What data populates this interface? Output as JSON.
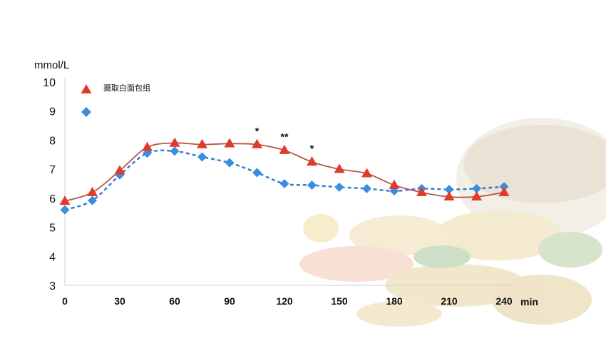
{
  "chart_data": {
    "type": "line",
    "ylabel": "mmol/L",
    "xlabel": "min",
    "xlim": [
      0,
      240
    ],
    "ylim": [
      3,
      10
    ],
    "x_ticks": [
      0,
      30,
      60,
      90,
      120,
      150,
      180,
      210,
      240
    ],
    "y_ticks": [
      3,
      4,
      5,
      6,
      7,
      8,
      9,
      10
    ],
    "legend_placement": "top-left",
    "series": [
      {
        "name": "摄取白面包组",
        "marker": "triangle",
        "line_style": "solid",
        "color": "#e03a2a",
        "line_color": "#b5574d",
        "x": [
          0,
          15,
          30,
          45,
          60,
          75,
          90,
          105,
          120,
          135,
          150,
          165,
          180,
          195,
          210,
          225,
          240
        ],
        "values": [
          5.9,
          6.2,
          6.95,
          7.75,
          7.9,
          7.85,
          7.88,
          7.85,
          7.65,
          7.25,
          7.0,
          6.85,
          6.45,
          6.2,
          6.05,
          6.05,
          6.2
        ]
      },
      {
        "name": "",
        "marker": "diamond",
        "line_style": "dashed",
        "color": "#3b8de0",
        "line_color": "#2f7fd6",
        "x": [
          0,
          15,
          30,
          45,
          60,
          75,
          90,
          105,
          120,
          135,
          150,
          165,
          180,
          195,
          210,
          225,
          240
        ],
        "values": [
          5.6,
          5.92,
          6.8,
          7.55,
          7.62,
          7.42,
          7.22,
          6.88,
          6.5,
          6.45,
          6.38,
          6.33,
          6.25,
          6.33,
          6.3,
          6.33,
          6.4
        ]
      }
    ],
    "annotations": [
      {
        "x": 105,
        "y": 7.85,
        "text": "*"
      },
      {
        "x": 120,
        "y": 7.65,
        "text": "**"
      },
      {
        "x": 135,
        "y": 7.25,
        "text": "*"
      }
    ]
  }
}
